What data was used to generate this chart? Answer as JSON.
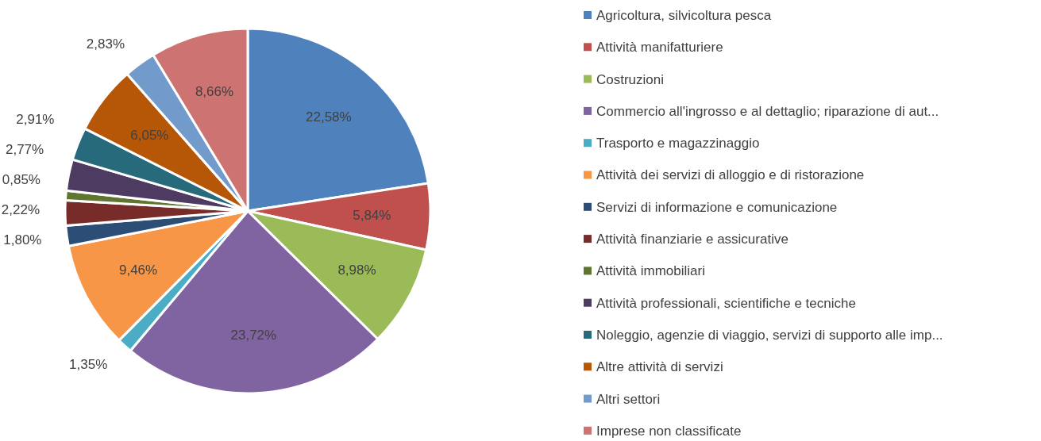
{
  "chart_data": {
    "type": "pie",
    "legend": "right",
    "categories": [
      "Agricoltura, silvicoltura pesca",
      "Attività manifatturiere",
      "Costruzioni",
      "Commercio all'ingrosso e al dettaglio; riparazione di aut...",
      "Trasporto e magazzinaggio",
      "Attività dei servizi di alloggio e di ristorazione",
      "Servizi di informazione e comunicazione",
      "Attività finanziarie e assicurative",
      "Attività immobiliari",
      "Attività professionali, scientifiche e tecniche",
      "Noleggio, agenzie di viaggio, servizi di supporto alle imp...",
      "Altre attività di servizi",
      "Altri settori",
      "Imprese non classificate"
    ],
    "values": [
      22.58,
      5.84,
      8.98,
      23.72,
      1.35,
      9.46,
      1.8,
      2.22,
      0.85,
      2.77,
      2.91,
      6.05,
      2.83,
      8.66
    ],
    "value_labels": [
      "22,58%",
      "5,84%",
      "8,98%",
      "23,72%",
      "1,35%",
      "9,46%",
      "1,80%",
      "2,22%",
      "0,85%",
      "2,77%",
      "2,91%",
      "6,05%",
      "2,83%",
      "8,66%"
    ],
    "colors": [
      "#4f81bd",
      "#c0504d",
      "#9bbb59",
      "#8064a2",
      "#4bacc6",
      "#f79646",
      "#2c4d75",
      "#772c2a",
      "#5f7530",
      "#4d3b62",
      "#276a7c",
      "#b65708",
      "#729aca",
      "#cd7371"
    ]
  }
}
